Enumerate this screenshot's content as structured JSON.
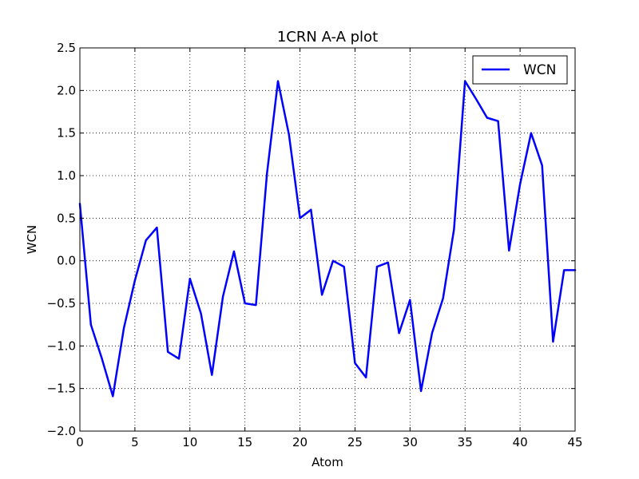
{
  "chart_data": {
    "type": "line",
    "title": "1CRN A-A plot",
    "xlabel": "Atom",
    "ylabel": "WCN",
    "xlim": [
      0,
      45
    ],
    "ylim": [
      -2.0,
      2.5
    ],
    "xticks": [
      0,
      5,
      10,
      15,
      20,
      25,
      30,
      35,
      40,
      45
    ],
    "xtick_labels": [
      "0",
      "5",
      "10",
      "15",
      "20",
      "25",
      "30",
      "35",
      "40",
      "45"
    ],
    "yticks": [
      -2.0,
      -1.5,
      -1.0,
      -0.5,
      0.0,
      0.5,
      1.0,
      1.5,
      2.0,
      2.5
    ],
    "ytick_labels": [
      "−2.0",
      "−1.5",
      "−1.0",
      "−0.5",
      "0.0",
      "0.5",
      "1.0",
      "1.5",
      "2.0",
      "2.5"
    ],
    "grid": true,
    "legend_position": "top-right",
    "series": [
      {
        "name": "WCN",
        "color": "#0000ff",
        "x": [
          0,
          1,
          2,
          3,
          4,
          5,
          6,
          7,
          8,
          9,
          10,
          11,
          12,
          13,
          14,
          15,
          16,
          17,
          18,
          19,
          20,
          21,
          22,
          23,
          24,
          25,
          26,
          27,
          28,
          29,
          30,
          31,
          32,
          33,
          34,
          35,
          36,
          37,
          38,
          39,
          40,
          41,
          42,
          43,
          44,
          45
        ],
        "y": [
          0.67,
          -0.75,
          -1.15,
          -1.59,
          -0.79,
          -0.23,
          0.24,
          0.39,
          -1.07,
          -1.15,
          -0.21,
          -0.62,
          -1.34,
          -0.42,
          0.11,
          -0.5,
          -0.52,
          1.02,
          2.11,
          1.48,
          0.5,
          0.6,
          -0.4,
          0.0,
          -0.07,
          -1.2,
          -1.37,
          -0.07,
          -0.02,
          -0.85,
          -0.46,
          -1.53,
          -0.85,
          -0.44,
          0.37,
          2.11,
          1.9,
          1.68,
          1.64,
          0.12,
          0.9,
          1.5,
          1.12,
          -0.95,
          -0.11,
          -0.11
        ]
      }
    ]
  }
}
